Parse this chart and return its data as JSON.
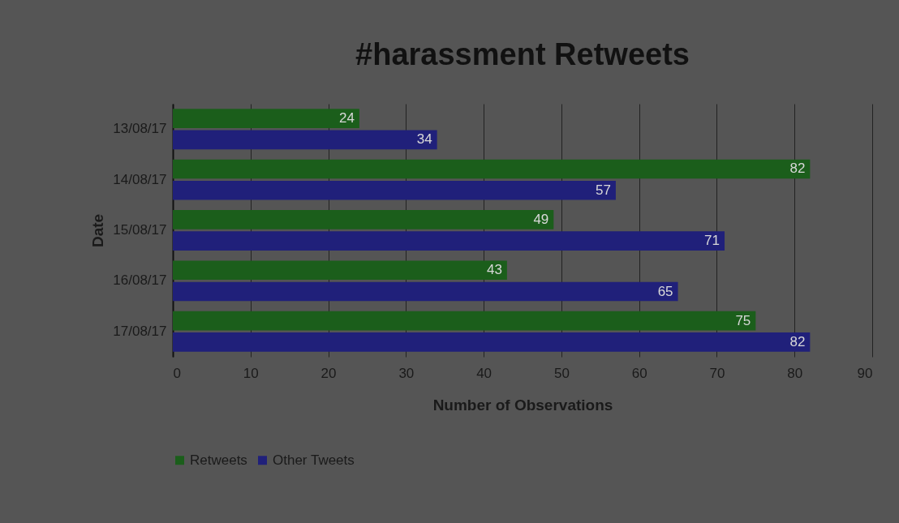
{
  "chart_data": {
    "type": "bar",
    "orientation": "horizontal",
    "title": "#harassment Retweets",
    "xlabel": "Number of Observations",
    "ylabel": "Date",
    "categories": [
      "13/08/17",
      "14/08/17",
      "15/08/17",
      "16/08/17",
      "17/08/17"
    ],
    "series": [
      {
        "name": "Retweets",
        "color": "#1b5e1b",
        "values": [
          24,
          82,
          49,
          43,
          75
        ]
      },
      {
        "name": "Other Tweets",
        "color": "#20207a",
        "values": [
          34,
          57,
          71,
          65,
          82
        ]
      }
    ],
    "xlim": [
      0,
      90
    ],
    "xticks": [
      0,
      10,
      20,
      30,
      40,
      50,
      60,
      70,
      80,
      90
    ],
    "grid": "x",
    "legend": "bottom",
    "data_labels": true
  }
}
